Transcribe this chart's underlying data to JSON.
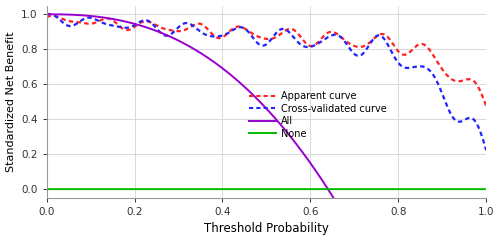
{
  "title": "",
  "xlabel": "Threshold Probability",
  "ylabel": "Standardized Net Benefit",
  "xlim": [
    0.0,
    1.0
  ],
  "ylim": [
    -0.05,
    1.05
  ],
  "yticks": [
    0.0,
    0.2,
    0.4,
    0.6,
    0.8,
    1.0
  ],
  "xticks": [
    0.0,
    0.2,
    0.4,
    0.6,
    0.8,
    1.0
  ],
  "background_color": "#ffffff",
  "grid_color": "#d3d3d3",
  "apparent_color": "#ff2222",
  "crossval_color": "#2222ff",
  "all_color": "#9900cc",
  "none_color": "#00bb00",
  "fig_width": 5.0,
  "fig_height": 2.41,
  "dpi": 100
}
